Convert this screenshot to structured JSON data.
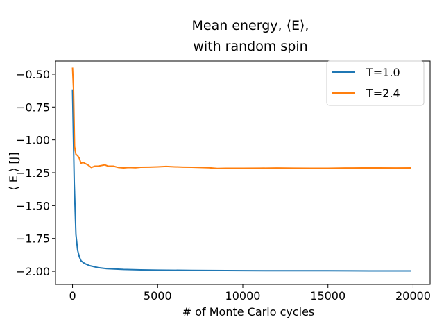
{
  "chart_data": {
    "type": "line",
    "title_lines": [
      "Mean energy, ⟨E⟩,",
      "with random spin"
    ],
    "xlabel": "# of Monte Carlo cycles",
    "ylabel": "⟨ E ⟩ [J]",
    "xlim": [
      -1000,
      21000
    ],
    "ylim": [
      -2.1,
      -0.4
    ],
    "x_ticks": [
      0,
      5000,
      10000,
      15000,
      20000
    ],
    "x_tick_labels": [
      "0",
      "5000",
      "10000",
      "15000",
      "20000"
    ],
    "y_ticks": [
      -2.0,
      -1.75,
      -1.5,
      -1.25,
      -1.0,
      -0.75,
      -0.5
    ],
    "y_tick_labels": [
      "−2.00",
      "−1.75",
      "−1.50",
      "−1.25",
      "−1.00",
      "−0.75",
      "−0.50"
    ],
    "grid": false,
    "legend_position": "upper right",
    "series": [
      {
        "name": "T=1.0",
        "color": "#1f77b4",
        "points": [
          [
            0,
            -0.62
          ],
          [
            100,
            -1.32
          ],
          [
            200,
            -1.72
          ],
          [
            300,
            -1.84
          ],
          [
            400,
            -1.89
          ],
          [
            500,
            -1.92
          ],
          [
            700,
            -1.94
          ],
          [
            1000,
            -1.957
          ],
          [
            1500,
            -1.972
          ],
          [
            2000,
            -1.98
          ],
          [
            3000,
            -1.986
          ],
          [
            4000,
            -1.989
          ],
          [
            5000,
            -1.991
          ],
          [
            7000,
            -1.993
          ],
          [
            10000,
            -1.995
          ],
          [
            12500,
            -1.996
          ],
          [
            15000,
            -1.996
          ],
          [
            17500,
            -1.997
          ],
          [
            19900,
            -1.997
          ]
        ]
      },
      {
        "name": "T=2.4",
        "color": "#ff7f0e",
        "points": [
          [
            0,
            -0.45
          ],
          [
            60,
            -0.62
          ],
          [
            120,
            -1.05
          ],
          [
            200,
            -1.11
          ],
          [
            300,
            -1.12
          ],
          [
            400,
            -1.14
          ],
          [
            500,
            -1.18
          ],
          [
            600,
            -1.17
          ],
          [
            750,
            -1.18
          ],
          [
            900,
            -1.19
          ],
          [
            1100,
            -1.21
          ],
          [
            1300,
            -1.2
          ],
          [
            1500,
            -1.2
          ],
          [
            1700,
            -1.195
          ],
          [
            1900,
            -1.19
          ],
          [
            2100,
            -1.2
          ],
          [
            2400,
            -1.2
          ],
          [
            2700,
            -1.21
          ],
          [
            3000,
            -1.213
          ],
          [
            3300,
            -1.21
          ],
          [
            3700,
            -1.212
          ],
          [
            4000,
            -1.208
          ],
          [
            4500,
            -1.207
          ],
          [
            5000,
            -1.205
          ],
          [
            5500,
            -1.202
          ],
          [
            6000,
            -1.205
          ],
          [
            6500,
            -1.207
          ],
          [
            7000,
            -1.208
          ],
          [
            7500,
            -1.21
          ],
          [
            8000,
            -1.212
          ],
          [
            8500,
            -1.217
          ],
          [
            9000,
            -1.216
          ],
          [
            10000,
            -1.216
          ],
          [
            11000,
            -1.215
          ],
          [
            12000,
            -1.214
          ],
          [
            13000,
            -1.215
          ],
          [
            14000,
            -1.216
          ],
          [
            15000,
            -1.216
          ],
          [
            16000,
            -1.214
          ],
          [
            17000,
            -1.213
          ],
          [
            18000,
            -1.213
          ],
          [
            19000,
            -1.214
          ],
          [
            19900,
            -1.213
          ]
        ]
      }
    ]
  }
}
